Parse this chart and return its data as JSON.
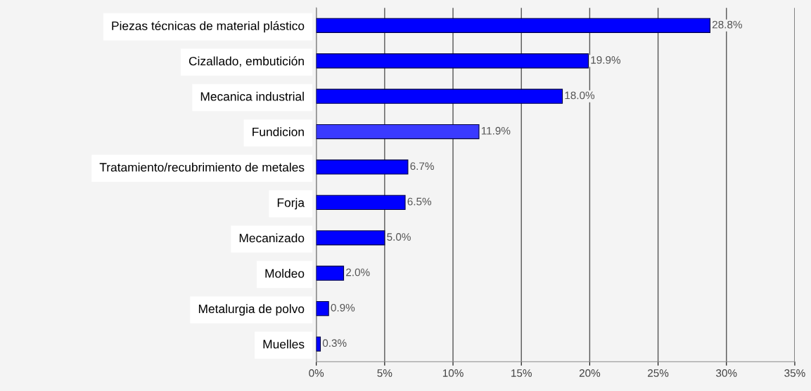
{
  "chart_data": {
    "type": "bar",
    "orientation": "horizontal",
    "categories": [
      "Piezas técnicas de material plástico",
      "Cizallado, embutición",
      "Mecanica industrial",
      "Fundicion",
      "Tratamiento/recubrimiento de metales",
      "Forja",
      "Mecanizado",
      "Moldeo",
      "Metalurgia de polvo",
      "Muelles"
    ],
    "values": [
      28.8,
      19.9,
      18.0,
      11.9,
      6.7,
      6.5,
      5.0,
      2.0,
      0.9,
      0.3
    ],
    "value_labels": [
      "28.8%",
      "19.9%",
      "18.0%",
      "11.9%",
      "6.7%",
      "6.5%",
      "5.0%",
      "2.0%",
      "0.9%",
      "0.3%"
    ],
    "colors": [
      "#0000ff",
      "#0000ff",
      "#0000ff",
      "#3a3aff",
      "#0000ff",
      "#0000ff",
      "#0000ff",
      "#0000ff",
      "#0000ff",
      "#0000ff"
    ],
    "xlim": [
      0,
      35
    ],
    "xticks": [
      {
        "value": 0,
        "label": "0%"
      },
      {
        "value": 5,
        "label": "5%"
      },
      {
        "value": 10,
        "label": "10%"
      },
      {
        "value": 15,
        "label": "15%"
      },
      {
        "value": 20,
        "label": "20%"
      },
      {
        "value": 25,
        "label": "25%"
      },
      {
        "value": 30,
        "label": "30%"
      },
      {
        "value": 35,
        "label": "35%"
      }
    ],
    "grid": "x"
  }
}
